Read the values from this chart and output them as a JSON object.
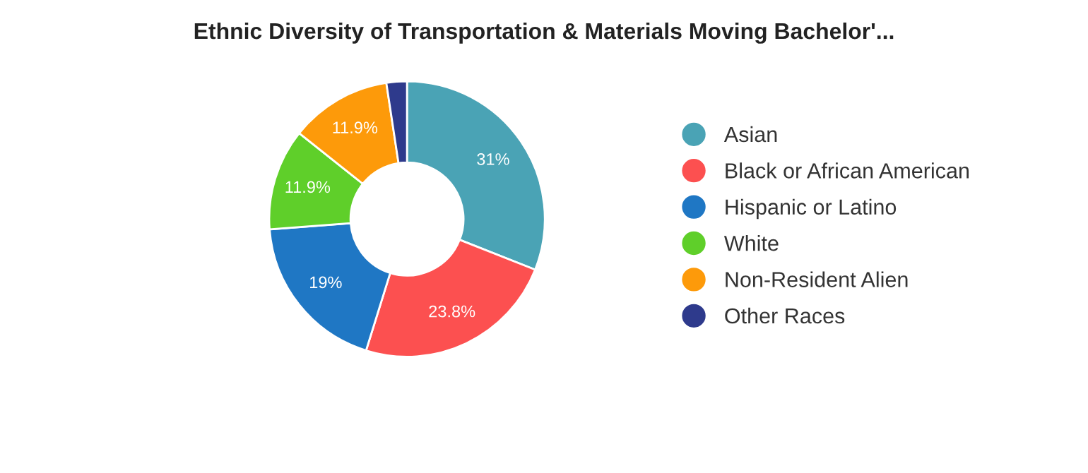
{
  "chart_data": {
    "type": "donut",
    "title": "Ethnic Diversity of Transportation & Materials Moving Bachelor'...",
    "categories": [
      "Asian",
      "Black or African American",
      "Hispanic or Latino",
      "White",
      "Non-Resident Alien",
      "Other Races"
    ],
    "values": [
      31,
      23.8,
      19,
      11.9,
      11.9,
      2.4
    ],
    "colors": [
      "#4aa3b5",
      "#fc5050",
      "#1f77c4",
      "#5fcf2a",
      "#fd9a0a",
      "#2e3a8c"
    ],
    "value_labels": [
      "31%",
      "23.8%",
      "19%",
      "11.9%",
      "11.9%",
      null
    ],
    "legend": "right"
  }
}
